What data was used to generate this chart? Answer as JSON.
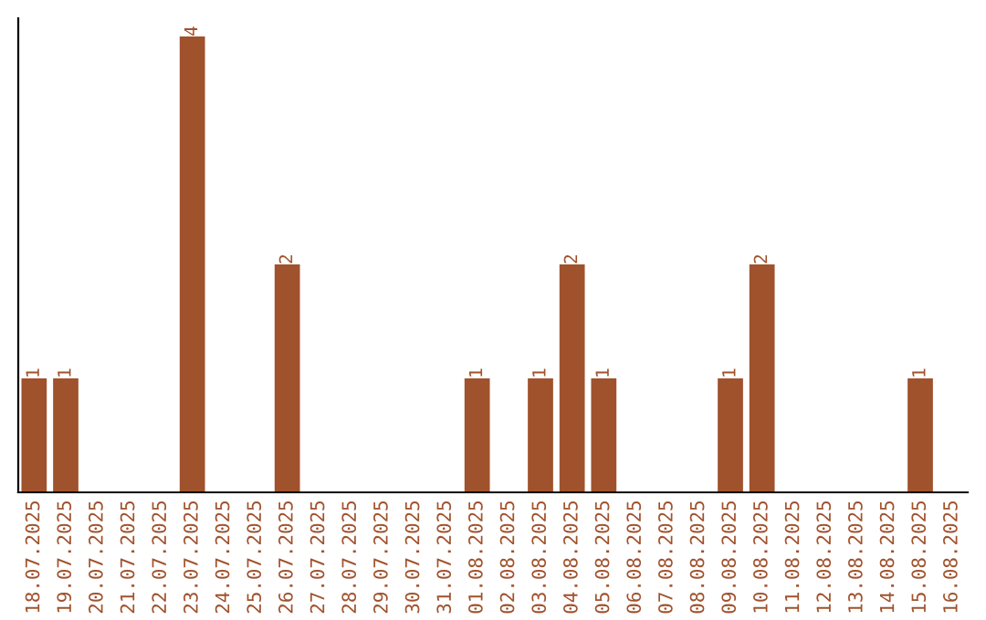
{
  "chart_data": {
    "type": "bar",
    "categories": [
      "18.07.2025",
      "19.07.2025",
      "20.07.2025",
      "21.07.2025",
      "22.07.2025",
      "23.07.2025",
      "24.07.2025",
      "25.07.2025",
      "26.07.2025",
      "27.07.2025",
      "28.07.2025",
      "29.07.2025",
      "30.07.2025",
      "31.07.2025",
      "01.08.2025",
      "02.08.2025",
      "03.08.2025",
      "04.08.2025",
      "05.08.2025",
      "06.08.2025",
      "07.08.2025",
      "08.08.2025",
      "09.08.2025",
      "10.08.2025",
      "11.08.2025",
      "12.08.2025",
      "13.08.2025",
      "14.08.2025",
      "15.08.2025",
      "16.08.2025"
    ],
    "values": [
      1,
      1,
      0,
      0,
      0,
      4,
      0,
      0,
      2,
      0,
      0,
      0,
      0,
      0,
      1,
      0,
      1,
      2,
      1,
      0,
      0,
      0,
      1,
      2,
      0,
      0,
      0,
      0,
      1,
      0
    ],
    "value_labels": [
      "1",
      "1",
      null,
      null,
      null,
      "4",
      null,
      null,
      "2",
      null,
      null,
      null,
      null,
      null,
      "1",
      null,
      "1",
      "2",
      "1",
      null,
      null,
      null,
      "1",
      "2",
      null,
      null,
      null,
      null,
      "1",
      null
    ],
    "color": "#a0522d",
    "grid": false,
    "legend": false
  }
}
